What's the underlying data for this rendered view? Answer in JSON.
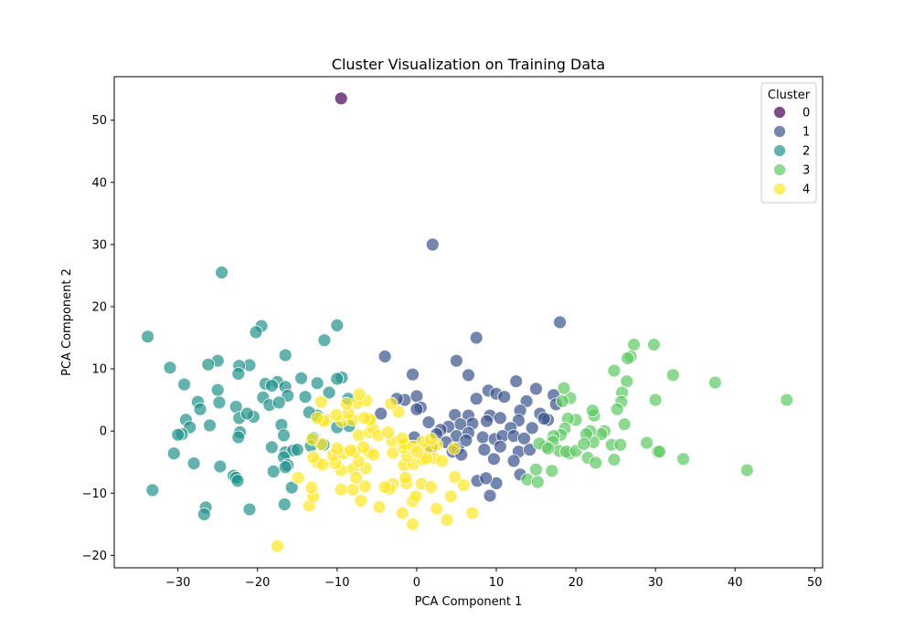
{
  "chart_data": {
    "type": "scatter",
    "title": "Cluster Visualization on Training Data",
    "xlabel": "PCA Component 1",
    "ylabel": "PCA Component 2",
    "xlim": [
      -38,
      51
    ],
    "ylim": [
      -22,
      57
    ],
    "xticks": [
      -30,
      -20,
      -10,
      0,
      10,
      20,
      30,
      40,
      50
    ],
    "yticks": [
      -20,
      -10,
      0,
      10,
      20,
      30,
      40,
      50
    ],
    "grid": false,
    "legend": {
      "title": "Cluster",
      "placement": "top-right"
    },
    "series": [
      {
        "name": "0",
        "color": "#440154",
        "points": [
          [
            -9.5,
            53.5
          ]
        ]
      },
      {
        "name": "1",
        "color": "#3b528b",
        "points": [
          [
            2,
            30
          ],
          [
            18,
            17.5
          ],
          [
            7.5,
            15
          ],
          [
            -4,
            12
          ],
          [
            5,
            11.3
          ],
          [
            6.5,
            9
          ],
          [
            -0.5,
            9.1
          ],
          [
            12.5,
            8
          ],
          [
            9,
            6.5
          ],
          [
            10,
            6
          ],
          [
            15,
            6.8
          ],
          [
            17.2,
            5.8
          ],
          [
            11,
            5.5
          ],
          [
            7.5,
            5.2
          ],
          [
            13.8,
            4.8
          ],
          [
            -1.5,
            5
          ],
          [
            -2.5,
            5.2
          ],
          [
            0,
            5.6
          ],
          [
            0.5,
            3.8
          ],
          [
            -4.5,
            2.8
          ],
          [
            4.8,
            2.6
          ],
          [
            6.5,
            2.5
          ],
          [
            9.2,
            2.5
          ],
          [
            10.5,
            2.1
          ],
          [
            13,
            3.3
          ],
          [
            15.5,
            2.8
          ],
          [
            16.5,
            1.8
          ],
          [
            12.8,
            1.7
          ],
          [
            11.8,
            0.5
          ],
          [
            8.8,
            1.6
          ],
          [
            7,
            1.2
          ],
          [
            5.5,
            1.1
          ],
          [
            4,
            0.7
          ],
          [
            3,
            0.2
          ],
          [
            1.5,
            1.4
          ],
          [
            2.5,
            -0.5
          ],
          [
            5,
            -0.8
          ],
          [
            6.5,
            -0.3
          ],
          [
            8.3,
            -1
          ],
          [
            9.8,
            -1.3
          ],
          [
            10.8,
            -0.8
          ],
          [
            12.2,
            -0.8
          ],
          [
            13.5,
            -1.2
          ],
          [
            3.7,
            -1.8
          ],
          [
            1.8,
            -2.6
          ],
          [
            5.2,
            -2.8
          ],
          [
            6.2,
            -1.5
          ],
          [
            8.5,
            -3
          ],
          [
            10.5,
            -2.5
          ],
          [
            12.8,
            -3.3
          ],
          [
            14.2,
            -3
          ],
          [
            4.5,
            -3.3
          ],
          [
            5.6,
            -3.8
          ],
          [
            9.7,
            -4.5
          ],
          [
            12.2,
            -4.8
          ],
          [
            13,
            -7
          ],
          [
            7.6,
            -8
          ],
          [
            10,
            -8.4
          ],
          [
            8.7,
            -7.6
          ],
          [
            9.2,
            -10.4
          ],
          [
            -0.3,
            -1
          ],
          [
            16,
            2
          ],
          [
            14.5,
            0.5
          ],
          [
            17.5,
            4.3
          ],
          [
            0,
            3.5
          ]
        ]
      },
      {
        "name": "2",
        "color": "#21918c",
        "points": [
          [
            -24.5,
            25.5
          ],
          [
            -33.8,
            15.2
          ],
          [
            -19.5,
            16.9
          ],
          [
            -20.2,
            15.9
          ],
          [
            -10,
            17
          ],
          [
            -11.6,
            14.6
          ],
          [
            -31,
            10.2
          ],
          [
            -25,
            11.3
          ],
          [
            -26.2,
            10.7
          ],
          [
            -21,
            10.6
          ],
          [
            -22.3,
            10.5
          ],
          [
            -16.5,
            12.2
          ],
          [
            -9.4,
            8.6
          ],
          [
            -10,
            8.4
          ],
          [
            -14.5,
            8.5
          ],
          [
            -12.5,
            7.7
          ],
          [
            -17.5,
            7.9
          ],
          [
            -19,
            7.6
          ],
          [
            -18.2,
            7.3
          ],
          [
            -16.5,
            7.1
          ],
          [
            -22.4,
            9.2
          ],
          [
            -29.2,
            7.5
          ],
          [
            -25,
            6.6
          ],
          [
            -19.3,
            5.4
          ],
          [
            -16.2,
            5.7
          ],
          [
            -14,
            5.5
          ],
          [
            -11,
            6.2
          ],
          [
            -8.6,
            5.2
          ],
          [
            -27.5,
            4.7
          ],
          [
            -24.8,
            4.6
          ],
          [
            -22.7,
            3.9
          ],
          [
            -18.5,
            4.2
          ],
          [
            -17.3,
            4.6
          ],
          [
            -27.2,
            3.5
          ],
          [
            -29,
            1.8
          ],
          [
            -26,
            0.9
          ],
          [
            -28.5,
            0.6
          ],
          [
            -22.3,
            2.1
          ],
          [
            -20.5,
            2.3
          ],
          [
            -21.3,
            2.8
          ],
          [
            -12.5,
            2.5
          ],
          [
            -8.5,
            0.8
          ],
          [
            -10,
            0.6
          ],
          [
            -17,
            1
          ],
          [
            -29.5,
            -0.5
          ],
          [
            -30,
            -0.6
          ],
          [
            -22.2,
            -0.2
          ],
          [
            -22.4,
            -1
          ],
          [
            -16.7,
            -0.7
          ],
          [
            -13,
            -1.1
          ],
          [
            -11.7,
            -2.2
          ],
          [
            -13.3,
            -2.4
          ],
          [
            -18.2,
            -2.6
          ],
          [
            -16.5,
            -3.4
          ],
          [
            -15.5,
            -3.1
          ],
          [
            -15,
            -3
          ],
          [
            -30.5,
            -3.6
          ],
          [
            -16.7,
            -4.2
          ],
          [
            -16.2,
            -5.5
          ],
          [
            -16.5,
            -5.8
          ],
          [
            -28,
            -5.2
          ],
          [
            -24.7,
            -5.7
          ],
          [
            -23,
            -7.2
          ],
          [
            -22.7,
            -7.5
          ],
          [
            -22.5,
            -8
          ],
          [
            -15.7,
            -9.1
          ],
          [
            -33.2,
            -9.5
          ],
          [
            -16.6,
            -11.8
          ],
          [
            -26.5,
            -12.3
          ],
          [
            -26.7,
            -13.4
          ],
          [
            -21,
            -12.6
          ],
          [
            -18,
            -6.5
          ],
          [
            -13.5,
            3
          ]
        ]
      },
      {
        "name": "3",
        "color": "#5ec962",
        "points": [
          [
            46.5,
            5
          ],
          [
            37.5,
            7.8
          ],
          [
            41.5,
            -6.3
          ],
          [
            32.2,
            9
          ],
          [
            30,
            5
          ],
          [
            29.8,
            13.9
          ],
          [
            27.3,
            13.9
          ],
          [
            26.9,
            12
          ],
          [
            26.5,
            11.7
          ],
          [
            26.4,
            8
          ],
          [
            24.8,
            9.7
          ],
          [
            25.8,
            6.2
          ],
          [
            25.7,
            4.7
          ],
          [
            25.2,
            3.5
          ],
          [
            26.1,
            1.1
          ],
          [
            23.6,
            0
          ],
          [
            23.2,
            -0.5
          ],
          [
            22.3,
            2.5
          ],
          [
            22.1,
            3.3
          ],
          [
            21.8,
            0
          ],
          [
            22.2,
            -1.8
          ],
          [
            21.3,
            -0.5
          ],
          [
            20,
            1.8
          ],
          [
            19.3,
            5.3
          ],
          [
            18.5,
            6.9
          ],
          [
            18.3,
            4.8
          ],
          [
            19,
            2
          ],
          [
            18.6,
            0.4
          ],
          [
            18.1,
            -0.6
          ],
          [
            17.2,
            -0.8
          ],
          [
            17.1,
            -1.7
          ],
          [
            16.2,
            -2.5
          ],
          [
            15.4,
            -2
          ],
          [
            17.9,
            -3.2
          ],
          [
            19.2,
            -3.6
          ],
          [
            18.8,
            -3.3
          ],
          [
            20,
            -3.2
          ],
          [
            21,
            -2.1
          ],
          [
            21.5,
            -4.3
          ],
          [
            22.5,
            -5.1
          ],
          [
            24.5,
            -2.2
          ],
          [
            25.6,
            -2.2
          ],
          [
            24.8,
            -4.6
          ],
          [
            28.9,
            -1.9
          ],
          [
            30.3,
            -3.3
          ],
          [
            30.5,
            -3.3
          ],
          [
            33.5,
            -4.5
          ],
          [
            17,
            -6.4
          ],
          [
            15,
            -6.2
          ],
          [
            13.9,
            -7.8
          ],
          [
            15.2,
            -8.2
          ],
          [
            16.5,
            -2.8
          ]
        ]
      },
      {
        "name": "4",
        "color": "#fde725",
        "points": [
          [
            -17.5,
            -18.5
          ],
          [
            -0.5,
            -15
          ],
          [
            3.8,
            -14.3
          ],
          [
            -1.8,
            -13.2
          ],
          [
            2.5,
            -12.5
          ],
          [
            7,
            -13.2
          ],
          [
            -13.5,
            -12
          ],
          [
            -7,
            -11.2
          ],
          [
            -4.7,
            -12.2
          ],
          [
            -0.5,
            -11.3
          ],
          [
            -0.1,
            -10.5
          ],
          [
            4.3,
            -10.5
          ],
          [
            -13,
            -10.5
          ],
          [
            -8,
            -9.4
          ],
          [
            -9.5,
            -9.4
          ],
          [
            -13.2,
            -9.1
          ],
          [
            -6.5,
            -8.9
          ],
          [
            -3,
            -8.5
          ],
          [
            -3.4,
            -9.3
          ],
          [
            -1.3,
            -8.4
          ],
          [
            -1.4,
            -7.5
          ],
          [
            0.6,
            -8.5
          ],
          [
            1.8,
            -9
          ],
          [
            5.9,
            -8.7
          ],
          [
            4.8,
            -7.4
          ],
          [
            -14.9,
            -7.5
          ],
          [
            -9.5,
            -6.3
          ],
          [
            -8,
            -6.1
          ],
          [
            -6.4,
            -6
          ],
          [
            -12.5,
            -5
          ],
          [
            -11.8,
            -5.4
          ],
          [
            -10.2,
            -5.2
          ],
          [
            -7.3,
            -4.9
          ],
          [
            -1.6,
            -5.5
          ],
          [
            -0.4,
            -5.3
          ],
          [
            -1.2,
            -4
          ],
          [
            0.8,
            -4.6
          ],
          [
            2.2,
            -4.4
          ],
          [
            3.2,
            -4.8
          ],
          [
            -13,
            -4.2
          ],
          [
            -10.5,
            -3.9
          ],
          [
            -9.2,
            -3.6
          ],
          [
            -7.8,
            -3.4
          ],
          [
            -6,
            -3.4
          ],
          [
            -5.4,
            -3.8
          ],
          [
            -3,
            -3.5
          ],
          [
            -1.7,
            -2.6
          ],
          [
            -1.5,
            -2.1
          ],
          [
            -0.4,
            -2.5
          ],
          [
            1.5,
            -2.5
          ],
          [
            2.5,
            -2.2
          ],
          [
            4.7,
            -2.8
          ],
          [
            -12,
            -2.1
          ],
          [
            -10,
            -2.8
          ],
          [
            -6.7,
            -2.6
          ],
          [
            -3.1,
            -1.6
          ],
          [
            -1.8,
            -1.2
          ],
          [
            0.8,
            -1.7
          ],
          [
            1.8,
            -1.3
          ],
          [
            -13.1,
            -1.3
          ],
          [
            -7.3,
            -0.7
          ],
          [
            -5.9,
            -0.2
          ],
          [
            -5.5,
            0.4
          ],
          [
            -4.8,
            -0.7
          ],
          [
            -3.6,
            -0.2
          ],
          [
            -5.8,
            1.6
          ],
          [
            -5.9,
            1.9
          ],
          [
            -11.3,
            1.8
          ],
          [
            -9.4,
            1.6
          ],
          [
            -8.1,
            1.8
          ],
          [
            -11.7,
            1.6
          ],
          [
            -6.6,
            2.1
          ],
          [
            -8.6,
            2.9
          ],
          [
            -10.1,
            2.6
          ],
          [
            -12.5,
            2.1
          ],
          [
            -2.3,
            3.1
          ],
          [
            -6.3,
            4.9
          ],
          [
            -7.5,
            4.5
          ],
          [
            -8.8,
            4.4
          ],
          [
            -12,
            4.7
          ],
          [
            -7.2,
            5.9
          ],
          [
            -3.2,
            4.4
          ],
          [
            -8.3,
            -3.1
          ],
          [
            -7.6,
            -7.5
          ],
          [
            -4,
            -9
          ],
          [
            1.2,
            -4.4
          ],
          [
            0.1,
            -3.3
          ]
        ]
      }
    ]
  }
}
